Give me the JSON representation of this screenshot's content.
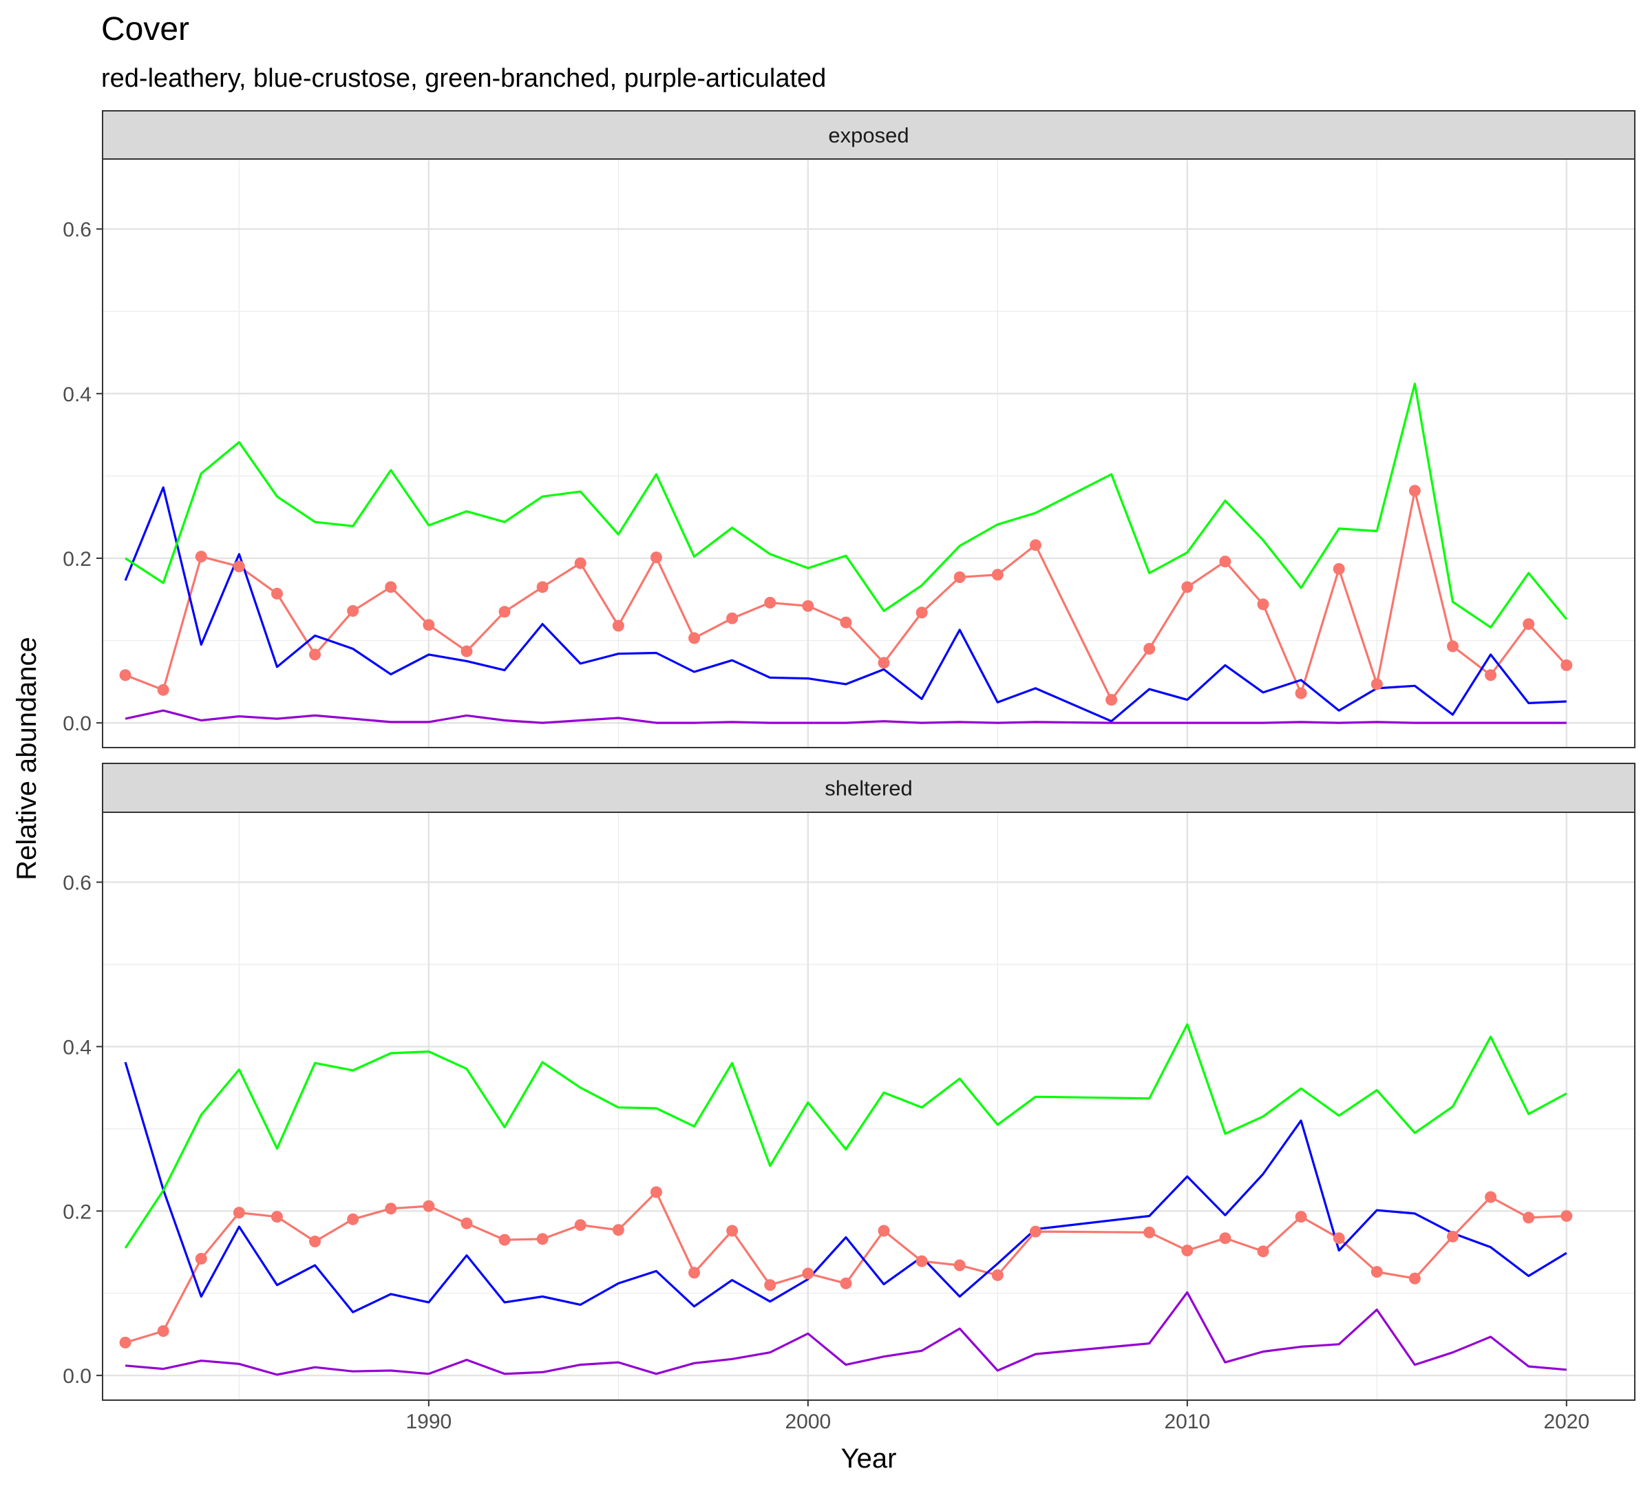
{
  "chart_data": {
    "type": "line",
    "title": "Cover",
    "subtitle": "red-leathery, blue-crustose, green-branched, purple-articulated",
    "xlabel": "Year",
    "ylabel": "Relative abundance",
    "xlim": [
      1981.4,
      2021.8
    ],
    "ylim": [
      -0.03,
      0.685
    ],
    "x_ticks": [
      1990,
      2000,
      2010,
      2020
    ],
    "y_ticks": [
      0.0,
      0.2,
      0.4,
      0.6
    ],
    "y_tick_labels": [
      "0.0",
      "0.2",
      "0.4",
      "0.6"
    ],
    "grid": true,
    "legend": "none",
    "colors": {
      "red": "#F8766D",
      "blue": "#0000FF",
      "green": "#00FF00",
      "purple": "#9400D3"
    },
    "panels": [
      {
        "label": "exposed",
        "series": [
          {
            "color": "red",
            "points": true,
            "x": [
              1982,
              1983,
              1984,
              1985,
              1986,
              1987,
              1988,
              1989,
              1990,
              1991,
              1992,
              1993,
              1994,
              1995,
              1996,
              1997,
              1998,
              1999,
              2000,
              2001,
              2002,
              2003,
              2004,
              2005,
              2006,
              2008,
              2009,
              2010,
              2011,
              2012,
              2013,
              2014,
              2015,
              2016,
              2017,
              2018,
              2019,
              2020
            ],
            "y": [
              0.058,
              0.04,
              0.202,
              0.19,
              0.157,
              0.083,
              0.136,
              0.165,
              0.119,
              0.087,
              0.135,
              0.165,
              0.194,
              0.118,
              0.201,
              0.103,
              0.127,
              0.146,
              0.142,
              0.122,
              0.073,
              0.134,
              0.177,
              0.18,
              0.216,
              0.028,
              0.09,
              0.165,
              0.196,
              0.144,
              0.036,
              0.187,
              0.047,
              0.282,
              0.093,
              0.058,
              0.12,
              0.07
            ]
          },
          {
            "color": "blue",
            "points": false,
            "x": [
              1982,
              1983,
              1984,
              1985,
              1986,
              1987,
              1988,
              1989,
              1990,
              1991,
              1992,
              1993,
              1994,
              1995,
              1996,
              1997,
              1998,
              1999,
              2000,
              2001,
              2002,
              2003,
              2004,
              2005,
              2006,
              2008,
              2009,
              2010,
              2011,
              2012,
              2013,
              2014,
              2015,
              2016,
              2017,
              2018,
              2019,
              2020
            ],
            "y": [
              0.173,
              0.286,
              0.095,
              0.205,
              0.068,
              0.106,
              0.09,
              0.059,
              0.083,
              0.075,
              0.064,
              0.12,
              0.072,
              0.084,
              0.085,
              0.062,
              0.076,
              0.055,
              0.054,
              0.047,
              0.065,
              0.029,
              0.113,
              0.025,
              0.042,
              0.002,
              0.041,
              0.028,
              0.07,
              0.037,
              0.052,
              0.015,
              0.042,
              0.045,
              0.01,
              0.083,
              0.024,
              0.026
            ]
          },
          {
            "color": "green",
            "points": false,
            "x": [
              1982,
              1983,
              1984,
              1985,
              1986,
              1987,
              1988,
              1989,
              1990,
              1991,
              1992,
              1993,
              1994,
              1995,
              1996,
              1997,
              1998,
              1999,
              2000,
              2001,
              2002,
              2003,
              2004,
              2005,
              2006,
              2008,
              2009,
              2010,
              2011,
              2012,
              2013,
              2014,
              2015,
              2016,
              2017,
              2018,
              2019,
              2020
            ],
            "y": [
              0.2,
              0.17,
              0.303,
              0.341,
              0.275,
              0.244,
              0.239,
              0.307,
              0.24,
              0.257,
              0.244,
              0.275,
              0.281,
              0.229,
              0.302,
              0.202,
              0.237,
              0.205,
              0.188,
              0.203,
              0.136,
              0.167,
              0.215,
              0.241,
              0.255,
              0.302,
              0.182,
              0.207,
              0.27,
              0.222,
              0.164,
              0.236,
              0.233,
              0.412,
              0.147,
              0.116,
              0.182,
              0.126
            ]
          },
          {
            "color": "purple",
            "points": false,
            "x": [
              1982,
              1983,
              1984,
              1985,
              1986,
              1987,
              1988,
              1989,
              1990,
              1991,
              1992,
              1993,
              1994,
              1995,
              1996,
              1997,
              1998,
              1999,
              2000,
              2001,
              2002,
              2003,
              2004,
              2005,
              2006,
              2008,
              2009,
              2010,
              2011,
              2012,
              2013,
              2014,
              2015,
              2016,
              2017,
              2018,
              2019,
              2020
            ],
            "y": [
              0.005,
              0.015,
              0.003,
              0.008,
              0.005,
              0.009,
              0.005,
              0.001,
              0.001,
              0.009,
              0.003,
              0.0,
              0.003,
              0.006,
              0.0,
              0.0,
              0.001,
              0.0,
              0.0,
              0.0,
              0.002,
              0.0,
              0.001,
              0.0,
              0.001,
              0.0,
              0.0,
              0.0,
              0.0,
              0.0,
              0.001,
              0.0,
              0.001,
              0.0,
              0.0,
              0.0,
              0.0,
              0.0
            ]
          }
        ]
      },
      {
        "label": "sheltered",
        "series": [
          {
            "color": "red",
            "points": true,
            "x": [
              1982,
              1983,
              1984,
              1985,
              1986,
              1987,
              1988,
              1989,
              1990,
              1991,
              1992,
              1993,
              1994,
              1995,
              1996,
              1997,
              1998,
              1999,
              2000,
              2001,
              2002,
              2003,
              2004,
              2005,
              2006,
              2009,
              2010,
              2011,
              2012,
              2013,
              2014,
              2015,
              2016,
              2017,
              2018,
              2019,
              2020
            ],
            "y": [
              0.04,
              0.054,
              0.142,
              0.198,
              0.193,
              0.163,
              0.19,
              0.203,
              0.206,
              0.185,
              0.165,
              0.166,
              0.183,
              0.177,
              0.223,
              0.125,
              0.176,
              0.11,
              0.124,
              0.112,
              0.176,
              0.139,
              0.134,
              0.122,
              0.175,
              0.174,
              0.152,
              0.167,
              0.151,
              0.193,
              0.167,
              0.126,
              0.118,
              0.169,
              0.217,
              0.192,
              0.194
            ]
          },
          {
            "color": "blue",
            "points": false,
            "x": [
              1982,
              1983,
              1984,
              1985,
              1986,
              1987,
              1988,
              1989,
              1990,
              1991,
              1992,
              1993,
              1994,
              1995,
              1996,
              1997,
              1998,
              1999,
              2000,
              2001,
              2002,
              2003,
              2004,
              2005,
              2006,
              2009,
              2010,
              2011,
              2012,
              2013,
              2014,
              2015,
              2016,
              2017,
              2018,
              2019,
              2020
            ],
            "y": [
              0.381,
              0.226,
              0.096,
              0.181,
              0.11,
              0.134,
              0.077,
              0.099,
              0.089,
              0.146,
              0.089,
              0.096,
              0.086,
              0.112,
              0.127,
              0.084,
              0.116,
              0.09,
              0.117,
              0.168,
              0.111,
              0.144,
              0.096,
              0.136,
              0.178,
              0.194,
              0.242,
              0.195,
              0.245,
              0.31,
              0.152,
              0.201,
              0.197,
              0.173,
              0.156,
              0.121,
              0.149
            ]
          },
          {
            "color": "green",
            "points": false,
            "x": [
              1982,
              1983,
              1984,
              1985,
              1986,
              1987,
              1988,
              1989,
              1990,
              1991,
              1992,
              1993,
              1994,
              1995,
              1996,
              1997,
              1998,
              1999,
              2000,
              2001,
              2002,
              2003,
              2004,
              2005,
              2006,
              2009,
              2010,
              2011,
              2012,
              2013,
              2014,
              2015,
              2016,
              2017,
              2018,
              2019,
              2020
            ],
            "y": [
              0.155,
              0.225,
              0.317,
              0.372,
              0.276,
              0.38,
              0.371,
              0.392,
              0.394,
              0.373,
              0.302,
              0.381,
              0.35,
              0.326,
              0.325,
              0.303,
              0.38,
              0.255,
              0.332,
              0.275,
              0.344,
              0.326,
              0.361,
              0.305,
              0.339,
              0.337,
              0.427,
              0.294,
              0.315,
              0.349,
              0.316,
              0.347,
              0.295,
              0.327,
              0.412,
              0.318,
              0.343
            ]
          },
          {
            "color": "purple",
            "points": false,
            "x": [
              1982,
              1983,
              1984,
              1985,
              1986,
              1987,
              1988,
              1989,
              1990,
              1991,
              1992,
              1993,
              1994,
              1995,
              1996,
              1997,
              1998,
              1999,
              2000,
              2001,
              2002,
              2003,
              2004,
              2005,
              2006,
              2009,
              2010,
              2011,
              2012,
              2013,
              2014,
              2015,
              2016,
              2017,
              2018,
              2019,
              2020
            ],
            "y": [
              0.012,
              0.008,
              0.018,
              0.014,
              0.001,
              0.01,
              0.005,
              0.006,
              0.002,
              0.019,
              0.002,
              0.004,
              0.013,
              0.016,
              0.002,
              0.015,
              0.02,
              0.028,
              0.051,
              0.013,
              0.023,
              0.03,
              0.057,
              0.006,
              0.026,
              0.039,
              0.101,
              0.016,
              0.029,
              0.035,
              0.038,
              0.08,
              0.013,
              0.028,
              0.047,
              0.011,
              0.007
            ]
          }
        ]
      }
    ]
  }
}
